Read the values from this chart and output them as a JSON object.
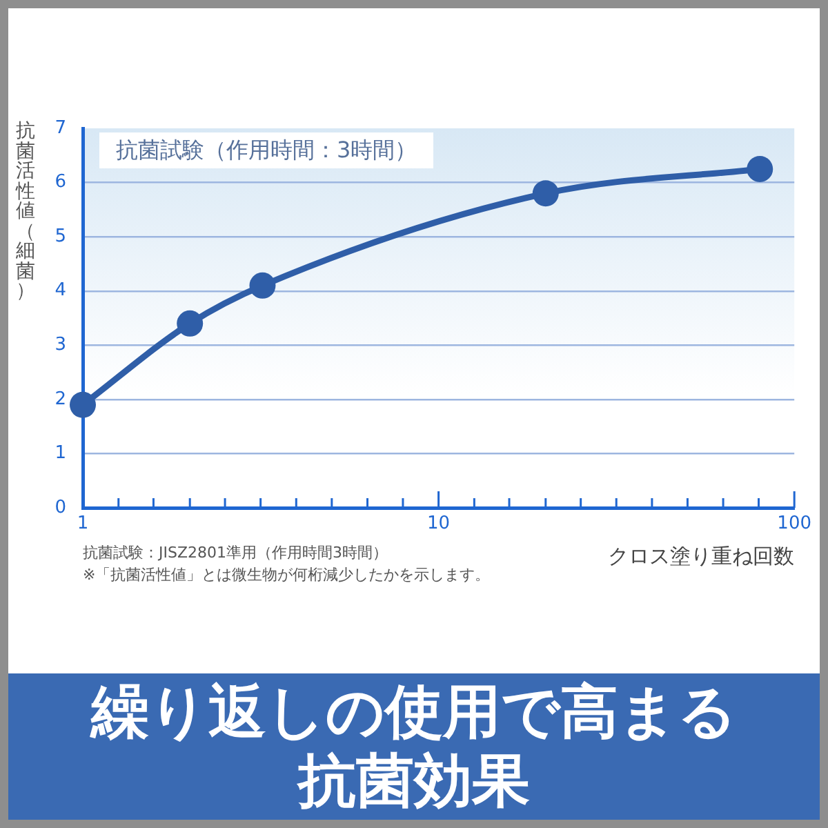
{
  "chart_data": {
    "type": "line",
    "title": "繰り返しの使用で高まる抗菌効果",
    "xlabel": "クロス塗り重ね回数",
    "ylabel": "抗菌活性値（細菌）",
    "annotations": [
      "抗菌試験（作用時間：3時間）",
      "抗菌試験：JISZ2801準用（作用時間3時間）",
      "※「抗菌活性値」とは微生物が何桁減少したかを示します。"
    ],
    "x": [
      1,
      2,
      3.2,
      20,
      80
    ],
    "series": [
      {
        "color": "#2f5ea8",
        "values": [
          1.9,
          3.4,
          4.1,
          5.8,
          6.25
        ]
      }
    ],
    "log": "x",
    "xlim": [
      1,
      100
    ],
    "xticks": [
      1,
      {
        "value": 1.26,
        "label": null
      },
      {
        "value": 1.58,
        "label": null
      },
      {
        "value": 2,
        "label": null
      },
      {
        "value": 2.51,
        "label": null
      },
      {
        "value": 3.16,
        "label": null
      },
      {
        "value": 3.98,
        "label": null
      },
      {
        "value": 5.01,
        "label": null
      },
      {
        "value": 6.31,
        "label": null
      },
      {
        "value": 7.94,
        "label": null
      },
      10,
      {
        "value": 12.6,
        "label": null
      },
      {
        "value": 15.8,
        "label": null
      },
      {
        "value": 20,
        "label": null
      },
      {
        "value": 25.1,
        "label": null
      },
      {
        "value": 31.6,
        "label": null
      },
      {
        "value": 39.8,
        "label": null
      },
      {
        "value": 50.1,
        "label": null
      },
      {
        "value": 63.1,
        "label": null
      },
      {
        "value": 79.4,
        "label": null
      },
      100
    ],
    "ylim": [
      0,
      7
    ],
    "yticks": [
      0,
      1,
      2,
      3,
      4,
      5,
      6,
      7
    ],
    "grid": "y",
    "marker": "circle",
    "line_style": "solid"
  }
}
